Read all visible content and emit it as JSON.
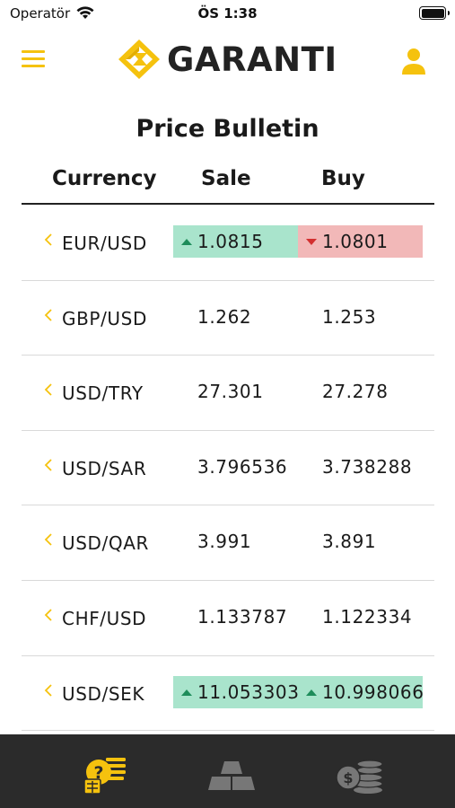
{
  "status_bar": {
    "carrier": "Operatör",
    "time": "ÖS 1:38",
    "icons": [
      "wifi-icon",
      "battery-icon"
    ]
  },
  "header": {
    "menu_icon": "hamburger-menu-icon",
    "brand_name": "GARANTI",
    "user_icon": "user-profile-icon"
  },
  "page": {
    "title": "Price Bulletin"
  },
  "table": {
    "columns": {
      "currency": "Currency",
      "sale": "Sale",
      "buy": "Buy"
    },
    "rows": [
      {
        "pair": "EUR/USD",
        "sale": "1.0815",
        "buy": "1.0801",
        "sale_trend": "up",
        "buy_trend": "down"
      },
      {
        "pair": "GBP/USD",
        "sale": "1.262",
        "buy": "1.253",
        "sale_trend": "none",
        "buy_trend": "none"
      },
      {
        "pair": "USD/TRY",
        "sale": "27.301",
        "buy": "27.278",
        "sale_trend": "none",
        "buy_trend": "none"
      },
      {
        "pair": "USD/SAR",
        "sale": "3.796536",
        "buy": "3.738288",
        "sale_trend": "none",
        "buy_trend": "none"
      },
      {
        "pair": "USD/QAR",
        "sale": "3.991",
        "buy": "3.891",
        "sale_trend": "none",
        "buy_trend": "none"
      },
      {
        "pair": "CHF/USD",
        "sale": "1.133787",
        "buy": "1.122334",
        "sale_trend": "none",
        "buy_trend": "none"
      },
      {
        "pair": "USD/SEK",
        "sale": "11.053303",
        "buy": "10.998066",
        "sale_trend": "up",
        "buy_trend": "up"
      }
    ]
  },
  "tabbar": {
    "tabs": [
      {
        "icon": "currency-exchange-icon",
        "active": true
      },
      {
        "icon": "gold-bars-icon",
        "active": false
      },
      {
        "icon": "coins-icon",
        "active": false
      }
    ]
  },
  "colors": {
    "accent": "#f5c20e",
    "up_bg": "#a9e4cc",
    "down_bg": "#f2b8b8",
    "tabbar_bg": "#2b2b2b",
    "inactive_tab": "#777777"
  }
}
